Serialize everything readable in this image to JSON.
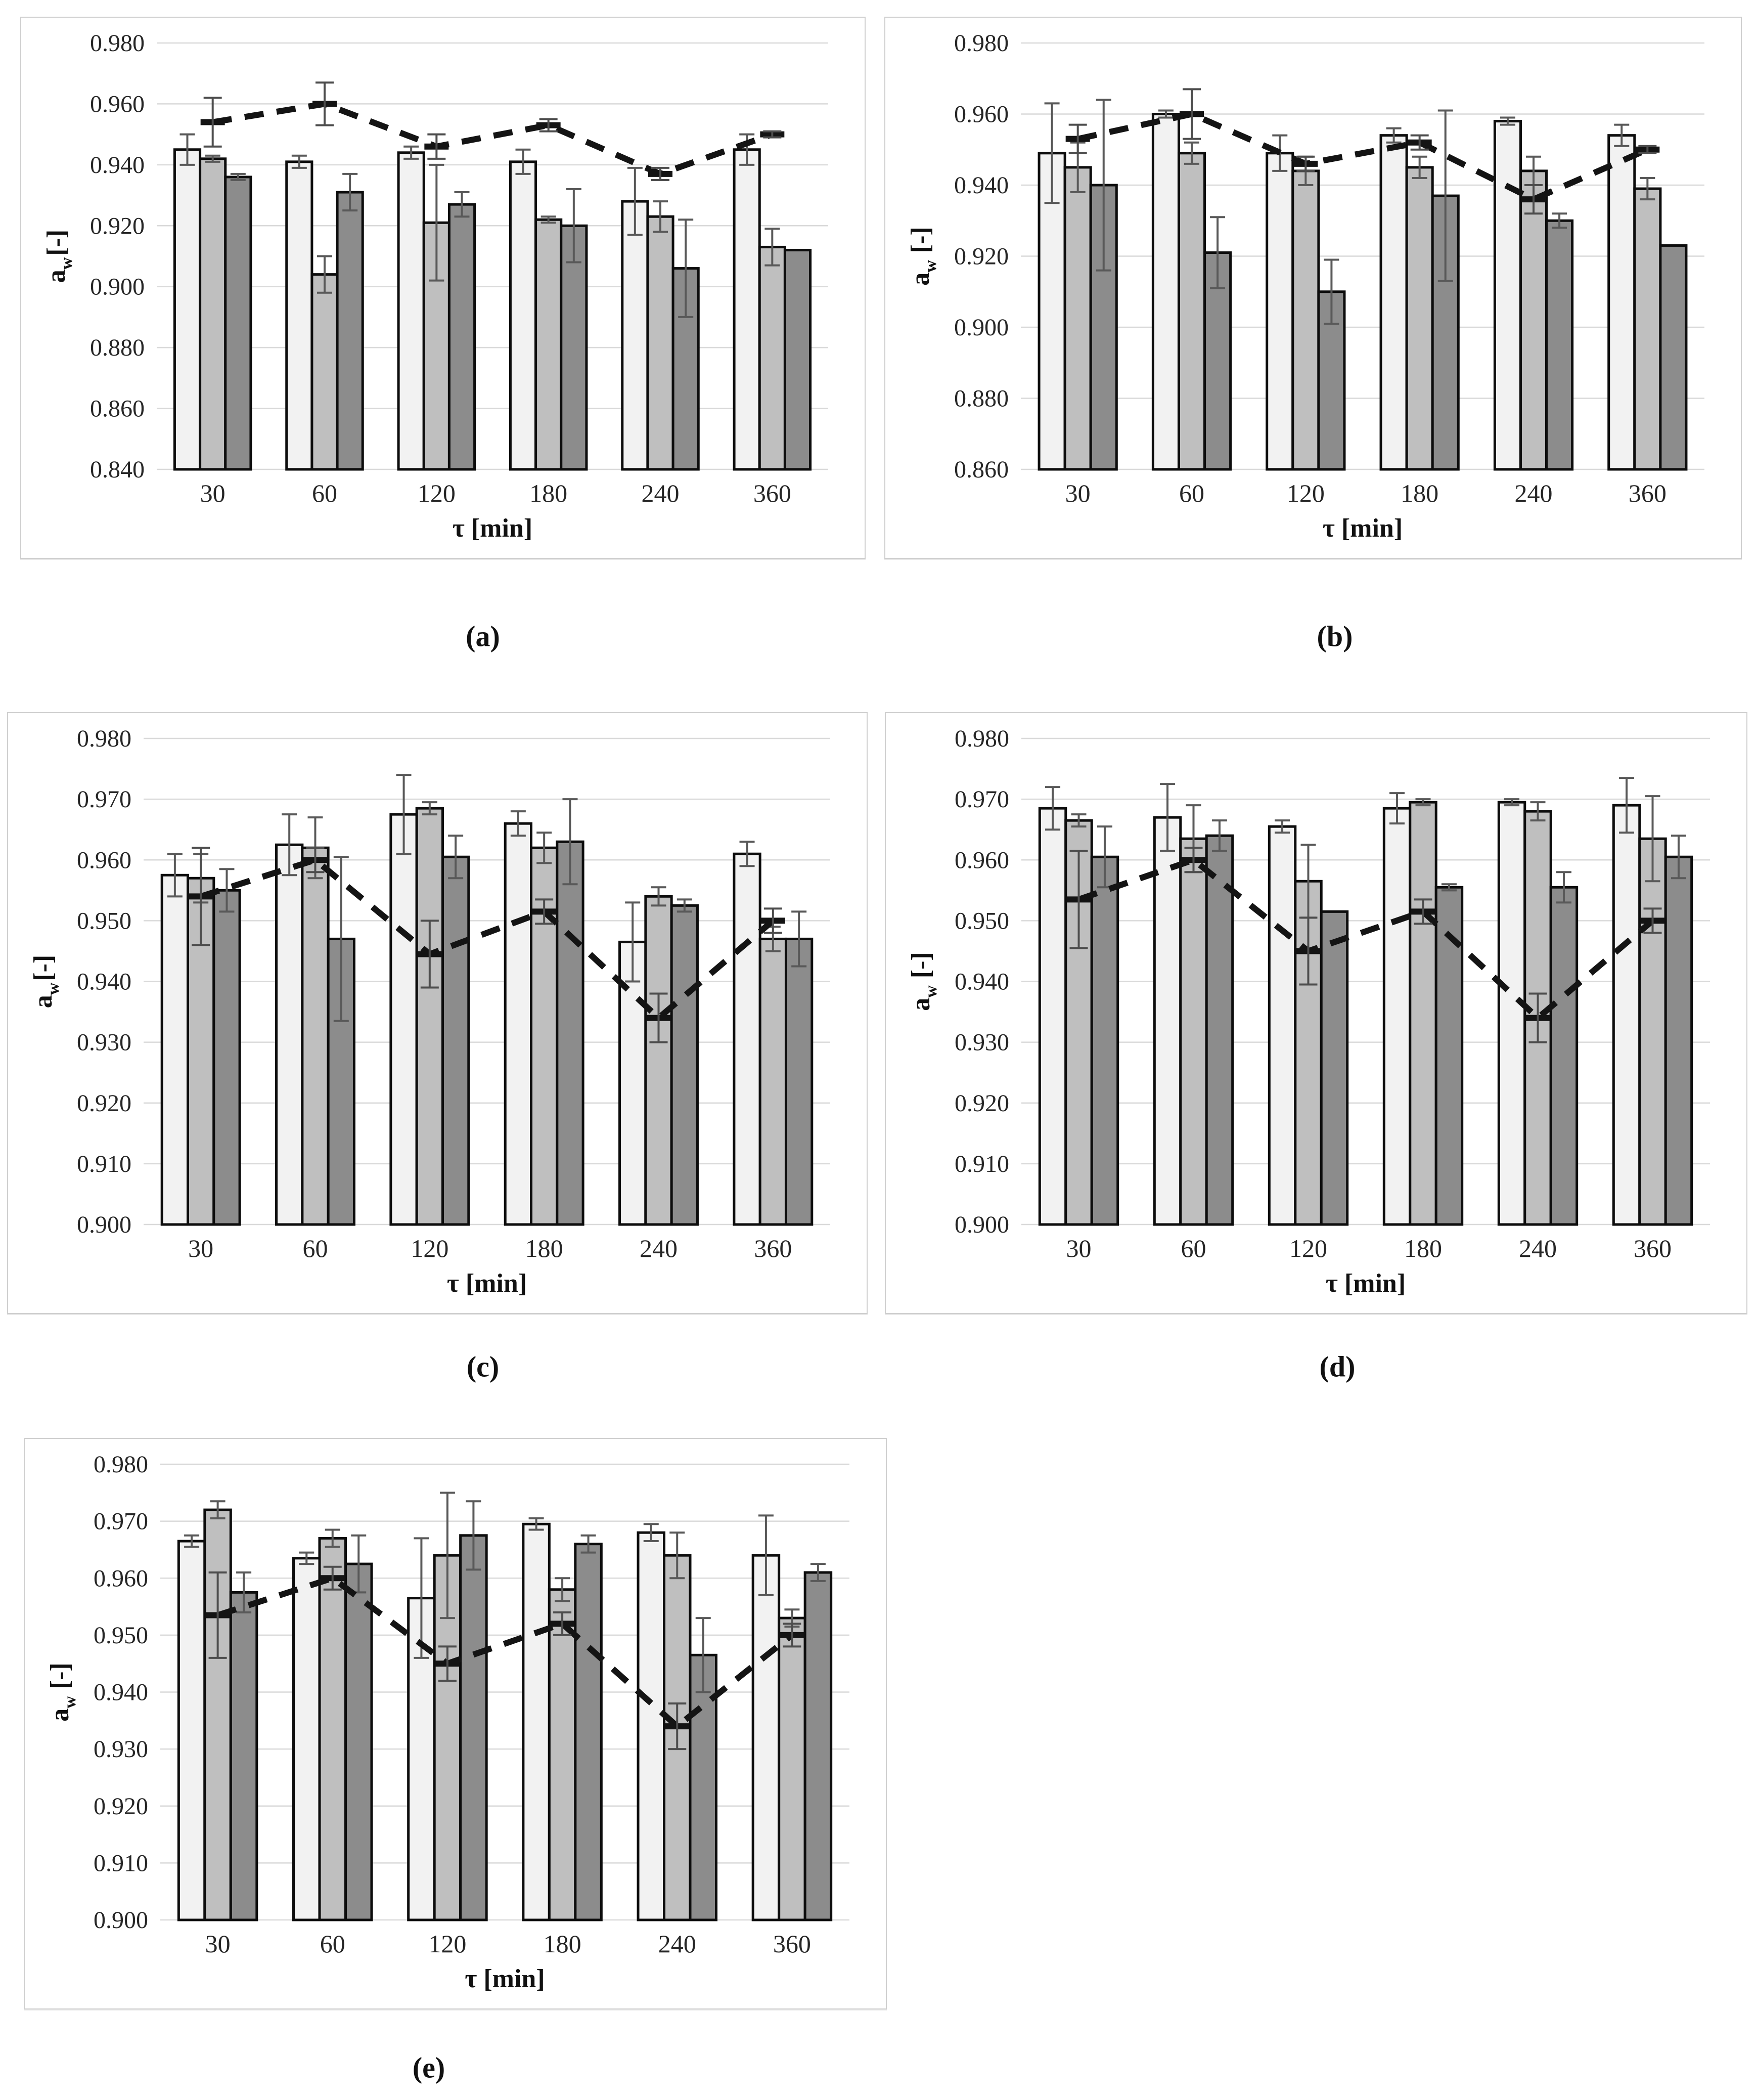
{
  "figure": {
    "background": "#ffffff",
    "subfigures": [
      {
        "id": "a",
        "label": "(a)"
      },
      {
        "id": "b",
        "label": "(b)"
      },
      {
        "id": "c",
        "label": "(c)"
      },
      {
        "id": "d",
        "label": "(d)"
      },
      {
        "id": "e",
        "label": "(e)"
      }
    ],
    "colors": {
      "bar_light": "#f2f2f2",
      "bar_medium": "#bfbfbf",
      "bar_dark": "#8c8c8c",
      "bar_outline": "#0d0d0d",
      "error_bar": "#595959",
      "dashed_line": "#141414",
      "gridline": "#d9d9d9",
      "tick_text": "#262626"
    }
  },
  "chart_data": [
    {
      "id": "a",
      "type": "bar",
      "title": "",
      "xlabel": "τ [min]",
      "ylabel": {
        "main": "a",
        "sub": "w",
        "rest": "[-]",
        "spaced": false
      },
      "categories": [
        "30",
        "60",
        "120",
        "180",
        "240",
        "360"
      ],
      "ylim": [
        0.84,
        0.98
      ],
      "ystep": 0.02,
      "grid": true,
      "legend": "none",
      "series": [
        {
          "name": "light",
          "color": "#f2f2f2",
          "values": [
            0.945,
            0.941,
            0.944,
            0.941,
            0.928,
            0.945
          ],
          "errors": [
            0.005,
            0.002,
            0.002,
            0.004,
            0.011,
            0.005
          ]
        },
        {
          "name": "medium",
          "color": "#bfbfbf",
          "values": [
            0.942,
            0.904,
            0.921,
            0.922,
            0.923,
            0.913
          ],
          "errors": [
            0.001,
            0.006,
            0.019,
            0.001,
            0.005,
            0.006
          ]
        },
        {
          "name": "dark",
          "color": "#8c8c8c",
          "values": [
            0.936,
            0.931,
            0.927,
            0.92,
            0.906,
            0.912
          ],
          "errors": [
            0.001,
            0.006,
            0.004,
            0.012,
            0.016,
            0
          ]
        },
        {
          "name": "control",
          "type": "line",
          "color": "#141414",
          "values": [
            0.954,
            0.96,
            0.946,
            0.953,
            0.937,
            0.95
          ],
          "errors": [
            0.008,
            0.007,
            0.004,
            0.002,
            0.002,
            0.001
          ]
        }
      ]
    },
    {
      "id": "b",
      "type": "bar",
      "title": "",
      "xlabel": "τ [min]",
      "ylabel": {
        "main": "a",
        "sub": "w",
        "rest": "[-]",
        "spaced": true
      },
      "categories": [
        "30",
        "60",
        "120",
        "180",
        "240",
        "360"
      ],
      "ylim": [
        0.86,
        0.98
      ],
      "ystep": 0.02,
      "grid": true,
      "legend": "none",
      "series": [
        {
          "name": "light",
          "color": "#f2f2f2",
          "values": [
            0.949,
            0.96,
            0.949,
            0.954,
            0.958,
            0.954
          ],
          "errors": [
            0.014,
            0.001,
            0.005,
            0.002,
            0.001,
            0.003
          ]
        },
        {
          "name": "medium",
          "color": "#bfbfbf",
          "values": [
            0.945,
            0.949,
            0.944,
            0.945,
            0.944,
            0.939
          ],
          "errors": [
            0.007,
            0.003,
            0.004,
            0.003,
            0.004,
            0.003
          ]
        },
        {
          "name": "dark",
          "color": "#8c8c8c",
          "values": [
            0.94,
            0.921,
            0.91,
            0.937,
            0.93,
            0.923
          ],
          "errors": [
            0.024,
            0.01,
            0.009,
            0.024,
            0.002,
            0
          ]
        },
        {
          "name": "control",
          "type": "line",
          "color": "#141414",
          "values": [
            0.953,
            0.96,
            0.946,
            0.952,
            0.936,
            0.95
          ],
          "errors": [
            0.004,
            0.007,
            0.002,
            0.002,
            0.004,
            0.001
          ]
        }
      ]
    },
    {
      "id": "c",
      "type": "bar",
      "title": "",
      "xlabel": "τ [min]",
      "ylabel": {
        "main": "a",
        "sub": "w",
        "rest": "[-]",
        "spaced": false
      },
      "categories": [
        "30",
        "60",
        "120",
        "180",
        "240",
        "360"
      ],
      "ylim": [
        0.9,
        0.98
      ],
      "ystep": 0.01,
      "grid": true,
      "legend": "none",
      "series": [
        {
          "name": "light",
          "color": "#f2f2f2",
          "values": [
            0.9575,
            0.9625,
            0.9675,
            0.966,
            0.9465,
            0.961
          ],
          "errors": [
            0.0035,
            0.005,
            0.0065,
            0.002,
            0.0065,
            0.002
          ]
        },
        {
          "name": "medium",
          "color": "#bfbfbf",
          "values": [
            0.957,
            0.962,
            0.9685,
            0.962,
            0.954,
            0.947
          ],
          "errors": [
            0.004,
            0.005,
            0.001,
            0.0025,
            0.0015,
            0.002
          ]
        },
        {
          "name": "dark",
          "color": "#8c8c8c",
          "values": [
            0.955,
            0.947,
            0.9605,
            0.963,
            0.9525,
            0.947
          ],
          "errors": [
            0.0035,
            0.0135,
            0.0035,
            0.007,
            0.001,
            0.0045
          ]
        },
        {
          "name": "control",
          "type": "line",
          "color": "#141414",
          "values": [
            0.954,
            0.96,
            0.9445,
            0.9515,
            0.934,
            0.95
          ],
          "errors": [
            0.008,
            0.002,
            0.0055,
            0.002,
            0.004,
            0.002
          ]
        }
      ]
    },
    {
      "id": "d",
      "type": "bar",
      "title": "",
      "xlabel": "τ [min]",
      "ylabel": {
        "main": "a",
        "sub": "w",
        "rest": "[-]",
        "spaced": true
      },
      "categories": [
        "30",
        "60",
        "120",
        "180",
        "240",
        "360"
      ],
      "ylim": [
        0.9,
        0.98
      ],
      "ystep": 0.01,
      "grid": true,
      "legend": "none",
      "series": [
        {
          "name": "light",
          "color": "#f2f2f2",
          "values": [
            0.9685,
            0.967,
            0.9655,
            0.9685,
            0.9695,
            0.969
          ],
          "errors": [
            0.0035,
            0.0055,
            0.001,
            0.0025,
            0.0005,
            0.0045
          ]
        },
        {
          "name": "medium",
          "color": "#bfbfbf",
          "values": [
            0.9665,
            0.9635,
            0.9565,
            0.9695,
            0.968,
            0.9635
          ],
          "errors": [
            0.001,
            0.0055,
            0.006,
            0.0005,
            0.0015,
            0.007
          ]
        },
        {
          "name": "dark",
          "color": "#8c8c8c",
          "values": [
            0.9605,
            0.964,
            0.9515,
            0.9555,
            0.9555,
            0.9605
          ],
          "errors": [
            0.005,
            0.0025,
            0,
            0.0005,
            0.0025,
            0.0035
          ]
        },
        {
          "name": "control",
          "type": "line",
          "color": "#141414",
          "values": [
            0.9535,
            0.96,
            0.945,
            0.9515,
            0.934,
            0.95
          ],
          "errors": [
            0.008,
            0.002,
            0.0055,
            0.002,
            0.004,
            0.002
          ]
        }
      ]
    },
    {
      "id": "e",
      "type": "bar",
      "title": "",
      "xlabel": "τ [min]",
      "ylabel": {
        "main": "a",
        "sub": "w",
        "rest": "[-]",
        "spaced": true
      },
      "categories": [
        "30",
        "60",
        "120",
        "180",
        "240",
        "360"
      ],
      "ylim": [
        0.9,
        0.98
      ],
      "ystep": 0.01,
      "grid": true,
      "legend": "none",
      "series": [
        {
          "name": "light",
          "color": "#f2f2f2",
          "values": [
            0.9665,
            0.9635,
            0.9565,
            0.9695,
            0.968,
            0.964
          ],
          "errors": [
            0.001,
            0.001,
            0.0105,
            0.001,
            0.0015,
            0.007
          ]
        },
        {
          "name": "medium",
          "color": "#bfbfbf",
          "values": [
            0.972,
            0.967,
            0.964,
            0.958,
            0.964,
            0.953
          ],
          "errors": [
            0.0015,
            0.0015,
            0.011,
            0.002,
            0.004,
            0.0015
          ]
        },
        {
          "name": "dark",
          "color": "#8c8c8c",
          "values": [
            0.9575,
            0.9625,
            0.9675,
            0.966,
            0.9465,
            0.961
          ],
          "errors": [
            0.0035,
            0.005,
            0.006,
            0.0015,
            0.0065,
            0.0015
          ]
        },
        {
          "name": "control",
          "type": "line",
          "color": "#141414",
          "values": [
            0.9535,
            0.96,
            0.945,
            0.952,
            0.934,
            0.95
          ],
          "errors": [
            0.0075,
            0.002,
            0.003,
            0.002,
            0.004,
            0.002
          ]
        }
      ]
    }
  ]
}
